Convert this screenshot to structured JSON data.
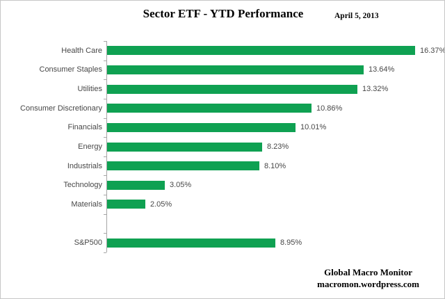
{
  "header": {
    "title": "Sector ETF - YTD Performance",
    "date": "April 5, 2013"
  },
  "footer": {
    "line1": "Global Macro Monitor",
    "line2": "macromon.wordpress.com"
  },
  "chart_data": {
    "type": "bar",
    "orientation": "horizontal",
    "title": "Sector ETF - YTD Performance",
    "categories": [
      "Health Care",
      "Consumer Staples",
      "Utilities",
      "Consumer Discretionary",
      "Financials",
      "Energy",
      "Industrials",
      "Technology",
      "Materials",
      "",
      "S&P500"
    ],
    "values": [
      16.37,
      13.64,
      13.32,
      10.86,
      10.01,
      8.23,
      8.1,
      3.05,
      2.05,
      null,
      8.95
    ],
    "value_labels": [
      "16.37%",
      "13.64%",
      "13.32%",
      "10.86%",
      "10.01%",
      "8.23%",
      "8.10%",
      "3.05%",
      "2.05%",
      "",
      "8.95%"
    ],
    "xlabel": "",
    "ylabel": "",
    "xlim": [
      0,
      18
    ],
    "grid": false,
    "legend": false,
    "bar_color": "#0fa152",
    "axis_color": "#a6a6a6",
    "label_color": "#474747"
  }
}
